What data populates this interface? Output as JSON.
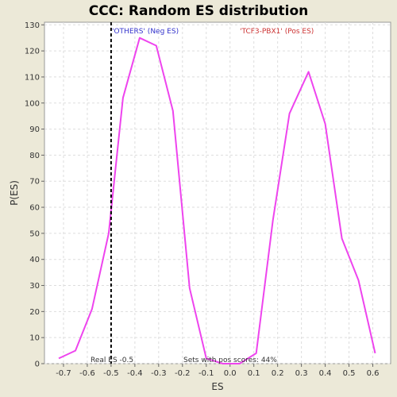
{
  "chart_data": {
    "type": "line",
    "title": "CCC: Random ES distribution",
    "xlabel": "ES",
    "ylabel": "P(ES)",
    "xlim": [
      -0.78,
      0.675
    ],
    "ylim": [
      0,
      131
    ],
    "x_ticks": [
      "-0.7",
      "-0.6",
      "-0.5",
      "-0.4",
      "-0.3",
      "-0.2",
      "-0.1",
      "0.0",
      "0.1",
      "0.2",
      "0.3",
      "0.4",
      "0.5",
      "0.6"
    ],
    "x_tick_values": [
      -0.7,
      -0.6,
      -0.5,
      -0.4,
      -0.3,
      -0.2,
      -0.1,
      0.0,
      0.1,
      0.2,
      0.3,
      0.4,
      0.5,
      0.6
    ],
    "y_ticks": [
      "0",
      "10",
      "20",
      "30",
      "40",
      "50",
      "60",
      "70",
      "80",
      "90",
      "100",
      "110",
      "120",
      "130"
    ],
    "y_tick_values": [
      0,
      10,
      20,
      30,
      40,
      50,
      60,
      70,
      80,
      90,
      100,
      110,
      120,
      130
    ],
    "grid": true,
    "series": [
      {
        "color": "#ee44ee",
        "x": [
          -0.72,
          -0.65,
          -0.58,
          -0.51,
          -0.45,
          -0.38,
          -0.31,
          -0.24,
          -0.17,
          -0.1,
          -0.03,
          0.04,
          0.11,
          0.18,
          0.25,
          0.33,
          0.4,
          0.47,
          0.54,
          0.61
        ],
        "y": [
          2,
          5,
          21,
          50,
          102,
          125,
          122,
          97,
          29,
          2,
          0,
          0,
          4,
          55,
          96,
          112,
          92,
          48,
          32,
          4
        ]
      }
    ],
    "real_es": -0.5,
    "annotations": {
      "neg_label": "'OTHERS' (Neg ES)",
      "pos_label": "'TCF3-PBX1' (Pos ES)",
      "real_es_label": "Real ES -0.5",
      "pos_scores_label": "Sets with pos scores: 44%"
    },
    "colors": {
      "neg_label": "#3333cc",
      "pos_label": "#cc3333",
      "line": "#ee44ee",
      "plot_bg": "#ffffff",
      "frame_bg": "#ece9d8"
    }
  }
}
